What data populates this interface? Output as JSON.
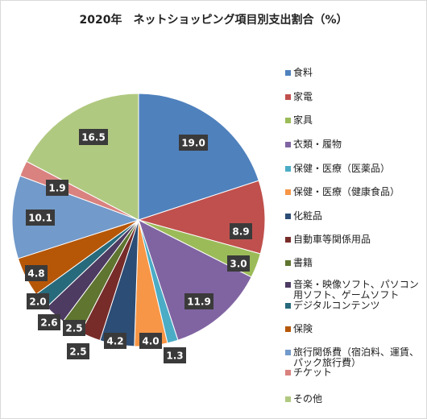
{
  "chart_data": {
    "type": "pie",
    "title": "2020年　ネットショッピング項目別支出割合（%）",
    "legend_position": "right",
    "slices": [
      {
        "name": "食料",
        "value": 19.0,
        "label": "19.0",
        "color": "#4f81bd"
      },
      {
        "name": "家電",
        "value": 8.9,
        "label": "8.9",
        "color": "#c0504d"
      },
      {
        "name": "家具",
        "value": 3.0,
        "label": "3.0",
        "color": "#9bbb59"
      },
      {
        "name": "衣類・履物",
        "value": 11.9,
        "label": "11.9",
        "color": "#8064a2"
      },
      {
        "name": "保健・医療（医薬品）",
        "value": 1.3,
        "label": "1.3",
        "color": "#4bacc6"
      },
      {
        "name": "保健・医療（健康食品）",
        "value": 4.0,
        "label": "4.0",
        "color": "#f79646"
      },
      {
        "name": "化粧品",
        "value": 4.2,
        "label": "4.2",
        "color": "#2c4d75"
      },
      {
        "name": "自動車等関係用品",
        "value": 2.5,
        "label": "2.5",
        "color": "#772c2a"
      },
      {
        "name": "書籍",
        "value": 2.5,
        "label": "2.5",
        "color": "#5f7530"
      },
      {
        "name": "音楽・映像ソフト、パソコン用ソフト、ゲームソフト",
        "value": 2.6,
        "label": "2.6",
        "color": "#4d3b62"
      },
      {
        "name": "デジタルコンテンツ",
        "value": 2.0,
        "label": "2.0",
        "color": "#276a7c"
      },
      {
        "name": "保険",
        "value": 4.8,
        "label": "4.8",
        "color": "#b65708"
      },
      {
        "name": "旅行関係費（宿泊料、運賃、パック旅行費）",
        "value": 10.1,
        "label": "10.1",
        "color": "#729aca"
      },
      {
        "name": "チケット",
        "value": 1.9,
        "label": "1.9",
        "color": "#d9827f"
      },
      {
        "name": "その他",
        "value": 16.5,
        "label": "16.5",
        "color": "#b0c980"
      }
    ]
  }
}
